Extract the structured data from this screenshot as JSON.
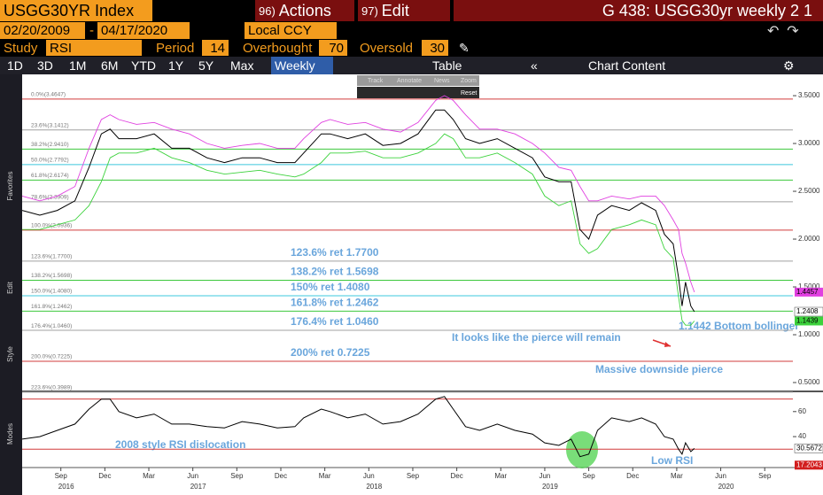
{
  "toolbar": {
    "security": "USGG30YR Index",
    "actions_num": "96)",
    "actions": "Actions",
    "edit_num": "97)",
    "edit": "Edit",
    "page_title": "G 438: USGG30yr weekly 2 1"
  },
  "dates": {
    "start": "02/20/2009",
    "end": "04/17/2020",
    "currency": "Local CCY"
  },
  "study": {
    "label": "Study",
    "name": "RSI",
    "period_label": "Period",
    "period": 14,
    "overbought_label": "Overbought",
    "overbought": 70,
    "oversold_label": "Oversold",
    "oversold": 30
  },
  "ranges": [
    "1D",
    "3D",
    "1M",
    "6M",
    "YTD",
    "1Y",
    "5Y",
    "Max"
  ],
  "frequency": "Weekly",
  "table": "Table",
  "chart_content": "Chart Content",
  "mini_toolbar": [
    "Track",
    "Annotate",
    "News",
    "Zoom"
  ],
  "reset": "Reset",
  "sidebar": [
    "Favorites",
    "Edit",
    "Style",
    "Modes"
  ],
  "notes": {
    "pierce": "It looks like the pierce will remain",
    "massive": "Massive downside pierce",
    "bottom": "1.1442 Bottom bollinger",
    "rsi_dislocation": "2008 style RSI dislocation",
    "low_rsi": "Low RSI"
  },
  "chart_data": [
    {
      "type": "line",
      "x": [
        2016.45,
        2016.55,
        2016.65,
        2016.75,
        2016.83,
        2016.9,
        2016.95,
        2017.0,
        2017.1,
        2017.2,
        2017.3,
        2017.4,
        2017.5,
        2017.6,
        2017.7,
        2017.8,
        2017.9,
        2018.0,
        2018.05,
        2018.15,
        2018.2,
        2018.3,
        2018.4,
        2018.5,
        2018.6,
        2018.7,
        2018.8,
        2018.85,
        2018.9,
        2018.97,
        2019.05,
        2019.15,
        2019.25,
        2019.35,
        2019.42,
        2019.5,
        2019.57,
        2019.62,
        2019.67,
        2019.72,
        2019.8,
        2019.9,
        2019.97,
        2020.05,
        2020.1,
        2020.15,
        2020.18,
        2020.2,
        2020.22,
        2020.25,
        2020.27
      ],
      "xlim": [
        2016.45,
        2020.83
      ],
      "series": [
        {
          "color": "#000000",
          "last_label": "1.2408",
          "values": [
            2.3,
            2.25,
            2.3,
            2.4,
            2.75,
            3.1,
            3.15,
            3.05,
            3.05,
            3.1,
            2.95,
            2.95,
            2.85,
            2.8,
            2.85,
            2.85,
            2.8,
            2.8,
            2.9,
            3.1,
            3.1,
            3.05,
            3.1,
            2.98,
            3.0,
            3.1,
            3.35,
            3.35,
            3.25,
            3.05,
            3.0,
            3.05,
            2.95,
            2.85,
            2.65,
            2.6,
            2.6,
            2.1,
            2.0,
            2.25,
            2.35,
            2.3,
            2.38,
            2.3,
            2.05,
            1.95,
            1.6,
            1.3,
            1.55,
            1.3,
            1.2408
          ]
        },
        {
          "color": "#e040e0",
          "last_label": "1.4457",
          "values": [
            2.45,
            2.4,
            2.45,
            2.55,
            2.95,
            3.25,
            3.3,
            3.25,
            3.2,
            3.22,
            3.15,
            3.1,
            3.0,
            2.95,
            2.98,
            3.0,
            2.95,
            2.95,
            3.05,
            3.22,
            3.25,
            3.2,
            3.22,
            3.15,
            3.12,
            3.22,
            3.45,
            3.5,
            3.45,
            3.3,
            3.15,
            3.15,
            3.1,
            3.0,
            2.9,
            2.75,
            2.72,
            2.55,
            2.4,
            2.4,
            2.45,
            2.42,
            2.45,
            2.45,
            2.35,
            2.2,
            2.1,
            1.85,
            1.75,
            1.55,
            1.4457
          ]
        },
        {
          "color": "#3cd23c",
          "last_label": "1.1439",
          "values": [
            2.1,
            2.1,
            2.15,
            2.2,
            2.35,
            2.6,
            2.85,
            2.9,
            2.9,
            2.95,
            2.85,
            2.8,
            2.72,
            2.68,
            2.7,
            2.72,
            2.68,
            2.65,
            2.68,
            2.8,
            2.9,
            2.9,
            2.92,
            2.85,
            2.85,
            2.9,
            3.0,
            3.1,
            3.05,
            2.85,
            2.85,
            2.9,
            2.8,
            2.68,
            2.45,
            2.35,
            2.4,
            1.95,
            1.85,
            1.9,
            2.1,
            2.15,
            2.2,
            2.15,
            1.9,
            1.8,
            1.4,
            1.15,
            1.1,
            1.1,
            1.1439
          ]
        }
      ],
      "ylim": [
        0.426,
        3.593
      ],
      "yticks": [
        {
          "value": 0.5,
          "label": "0.5000"
        },
        {
          "value": 1.0,
          "label": "1.0000"
        },
        {
          "value": 1.5,
          "label": "1.5000"
        },
        {
          "value": 2.0,
          "label": "2.0000"
        },
        {
          "value": 2.5,
          "label": "2.5000"
        },
        {
          "value": 3.0,
          "label": "3.0000"
        },
        {
          "value": 3.5,
          "label": "3.5000"
        }
      ],
      "levels": [
        {
          "value": 3.4647,
          "label": "0.0%(3.4647)",
          "color": "#d23c3c"
        },
        {
          "value": 3.1412,
          "label": "23.6%(3.1412)",
          "color": "#a0a0a0"
        },
        {
          "value": 2.941,
          "label": "38.2%(2.9410)",
          "color": "#3cc83c"
        },
        {
          "value": 2.7792,
          "label": "50.0%(2.7792)",
          "color": "#3cc8dc"
        },
        {
          "value": 2.6174,
          "label": "61.8%(2.6174)",
          "color": "#3cc83c"
        },
        {
          "value": 2.3909,
          "label": "78.6%(2.3909)",
          "color": "#a0a0a0"
        },
        {
          "value": 2.0936,
          "label": "100.0%(2.0936)",
          "color": "#d23c3c"
        },
        {
          "value": 1.77,
          "label": "123.6%(1.7700)",
          "color": "#a0a0a0"
        },
        {
          "value": 1.5698,
          "label": "138.2%(1.5698)",
          "color": "#3cc83c"
        },
        {
          "value": 1.408,
          "label": "150.0%(1.4080)",
          "color": "#3cc8dc"
        },
        {
          "value": 1.2462,
          "label": "161.8%(1.2462)",
          "color": "#3cc83c"
        },
        {
          "value": 1.046,
          "label": "176.4%(1.0460)",
          "color": "#a0a0a0"
        },
        {
          "value": 0.7225,
          "label": "200.0%(0.7225)",
          "color": "#d23c3c"
        },
        {
          "value": 0.3989,
          "label": "223.6%(0.3989)",
          "color": "#a0a0a0"
        }
      ],
      "annotations": [
        {
          "value": 1.77,
          "label": "123.6% ret 1.7700"
        },
        {
          "value": 1.5698,
          "label": "138.2% ret 1.5698"
        },
        {
          "value": 1.408,
          "label": "150% ret 1.4080"
        },
        {
          "value": 1.2462,
          "label": "161.8% ret 1.2462"
        },
        {
          "value": 1.046,
          "label": "176.4% ret 1.0460"
        },
        {
          "value": 0.7225,
          "label": "200% ret 0.7225"
        }
      ]
    },
    {
      "type": "line",
      "x": [
        2016.45,
        2016.55,
        2016.65,
        2016.75,
        2016.83,
        2016.9,
        2016.95,
        2017.0,
        2017.1,
        2017.2,
        2017.3,
        2017.4,
        2017.5,
        2017.6,
        2017.7,
        2017.8,
        2017.9,
        2018.0,
        2018.05,
        2018.15,
        2018.2,
        2018.3,
        2018.4,
        2018.5,
        2018.6,
        2018.7,
        2018.8,
        2018.85,
        2018.9,
        2018.97,
        2019.05,
        2019.15,
        2019.25,
        2019.35,
        2019.42,
        2019.5,
        2019.57,
        2019.62,
        2019.67,
        2019.72,
        2019.8,
        2019.9,
        2019.97,
        2020.05,
        2020.1,
        2020.15,
        2020.18,
        2020.2,
        2020.22,
        2020.25,
        2020.27
      ],
      "xlim": [
        2016.45,
        2020.83
      ],
      "series": [
        {
          "color": "#000000",
          "last_label": "30.5672",
          "values": [
            38,
            40,
            45,
            50,
            62,
            70,
            70,
            60,
            55,
            58,
            50,
            50,
            48,
            47,
            52,
            50,
            47,
            48,
            55,
            62,
            60,
            55,
            58,
            50,
            52,
            58,
            70,
            72,
            62,
            48,
            45,
            50,
            45,
            42,
            35,
            33,
            38,
            24,
            26,
            45,
            55,
            52,
            55,
            50,
            40,
            38,
            30,
            26,
            35,
            28,
            30.5672
          ]
        }
      ],
      "ylim": [
        16,
        74
      ],
      "yticks": [
        40,
        60
      ],
      "value_box": {
        "value": 17.2043,
        "label": "17.2043"
      },
      "xticks": [
        {
          "value": 2016.67,
          "label": "Sep"
        },
        {
          "value": 2016.92,
          "label": "Dec"
        },
        {
          "value": 2017.17,
          "label": "Mar"
        },
        {
          "value": 2017.42,
          "label": "Jun"
        },
        {
          "value": 2017.67,
          "label": "Sep"
        },
        {
          "value": 2017.92,
          "label": "Dec"
        },
        {
          "value": 2018.17,
          "label": "Mar"
        },
        {
          "value": 2018.42,
          "label": "Jun"
        },
        {
          "value": 2018.67,
          "label": "Sep"
        },
        {
          "value": 2018.92,
          "label": "Dec"
        },
        {
          "value": 2019.17,
          "label": "Mar"
        },
        {
          "value": 2019.42,
          "label": "Jun"
        },
        {
          "value": 2019.67,
          "label": "Sep"
        },
        {
          "value": 2019.92,
          "label": "Dec"
        },
        {
          "value": 2020.17,
          "label": "Mar"
        },
        {
          "value": 2020.42,
          "label": "Jun"
        },
        {
          "value": 2020.67,
          "label": "Sep"
        }
      ],
      "year_ticks": [
        {
          "value": 2016.7,
          "label": "2016"
        },
        {
          "value": 2017.45,
          "label": "2017"
        },
        {
          "value": 2018.45,
          "label": "2018"
        },
        {
          "value": 2019.45,
          "label": "2019"
        },
        {
          "value": 2020.45,
          "label": "2020"
        }
      ]
    }
  ]
}
